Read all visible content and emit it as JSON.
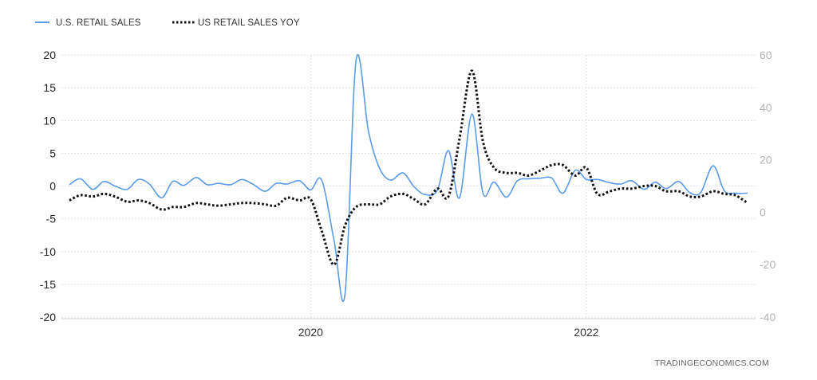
{
  "chart_data": {
    "type": "line",
    "legend": {
      "placement": "top-left",
      "items": [
        {
          "label": "U.S. RETAIL SALES",
          "color": "#5b9bea",
          "style": "solid"
        },
        {
          "label": "US RETAIL SALES YOY",
          "color": "#111111",
          "style": "dotted"
        }
      ]
    },
    "source": "TRADINGECONOMICS.COM",
    "grid": true,
    "x_ticks": [
      {
        "value": 2020.0,
        "label": "2020"
      },
      {
        "value": 2022.0,
        "label": "2022"
      }
    ],
    "xlim": [
      2018.25,
      2023.17
    ],
    "y_left": {
      "range": [
        -20,
        20
      ],
      "ticks": [
        "20",
        "15",
        "10",
        "5",
        "0",
        "-5",
        "-10",
        "-15",
        "-20"
      ],
      "tick_values": [
        20,
        15,
        10,
        5,
        0,
        -5,
        -10,
        -15,
        -20
      ]
    },
    "y_right": {
      "range": [
        -40,
        60
      ],
      "ticks": [
        "60",
        "40",
        "20",
        "0",
        "-20",
        "-40"
      ],
      "tick_values": [
        60,
        40,
        20,
        0,
        -20,
        -40
      ]
    },
    "series": [
      {
        "name": "U.S. RETAIL SALES",
        "axis": "left",
        "color": "#5b9bea",
        "dash": "solid",
        "x": [
          2018.25,
          2018.33,
          2018.42,
          2018.5,
          2018.58,
          2018.67,
          2018.75,
          2018.83,
          2018.92,
          2019.0,
          2019.08,
          2019.17,
          2019.25,
          2019.33,
          2019.42,
          2019.5,
          2019.58,
          2019.67,
          2019.75,
          2019.83,
          2019.92,
          2020.0,
          2020.08,
          2020.17,
          2020.25,
          2020.33,
          2020.42,
          2020.5,
          2020.58,
          2020.67,
          2020.75,
          2020.83,
          2020.92,
          2021.0,
          2021.08,
          2021.17,
          2021.25,
          2021.33,
          2021.42,
          2021.5,
          2021.58,
          2021.67,
          2021.75,
          2021.83,
          2021.92,
          2022.0,
          2022.08,
          2022.17,
          2022.25,
          2022.33,
          2022.42,
          2022.5,
          2022.58,
          2022.67,
          2022.75,
          2022.83,
          2022.92,
          2023.0,
          2023.08,
          2023.17
        ],
        "values": [
          0.2,
          1.1,
          -0.5,
          0.7,
          0,
          -0.5,
          1,
          0.3,
          -1.8,
          0.7,
          0.1,
          1.3,
          0.2,
          0.4,
          0.2,
          1,
          0.3,
          -0.8,
          0.4,
          0.3,
          0.8,
          -0.6,
          0.9,
          -8.3,
          -16.4,
          19.2,
          8.3,
          2.7,
          0.9,
          2.0,
          -0.1,
          -1.3,
          -0.6,
          5.4,
          -1.8,
          11,
          -1.1,
          0.6,
          -1.7,
          0.8,
          1.1,
          1.2,
          1.2,
          -1.1,
          2.4,
          1.0,
          1.0,
          0.5,
          0.3,
          0.8,
          -0.5,
          0.6,
          -0.4,
          0.7,
          -1,
          -1.0,
          3.1,
          -0.7,
          -1.1,
          -1.1
        ]
      },
      {
        "name": "US RETAIL SALES YOY",
        "axis": "right",
        "color": "#111111",
        "dash": "dotted",
        "x": [
          2018.25,
          2018.33,
          2018.42,
          2018.5,
          2018.58,
          2018.67,
          2018.75,
          2018.83,
          2018.92,
          2019.0,
          2019.08,
          2019.17,
          2019.25,
          2019.33,
          2019.42,
          2019.5,
          2019.58,
          2019.67,
          2019.75,
          2019.83,
          2019.92,
          2020.0,
          2020.08,
          2020.17,
          2020.25,
          2020.33,
          2020.42,
          2020.5,
          2020.58,
          2020.67,
          2020.75,
          2020.83,
          2020.92,
          2021.0,
          2021.08,
          2021.17,
          2021.25,
          2021.33,
          2021.42,
          2021.5,
          2021.58,
          2021.67,
          2021.75,
          2021.83,
          2021.92,
          2022.0,
          2022.08,
          2022.17,
          2022.25,
          2022.33,
          2022.42,
          2022.5,
          2022.58,
          2022.67,
          2022.75,
          2022.83,
          2022.92,
          2023.0,
          2023.08,
          2023.17
        ],
        "values": [
          4.5,
          6.5,
          6,
          7,
          6,
          4,
          4.5,
          3.5,
          1,
          2,
          2,
          3.5,
          3,
          2.5,
          3,
          3.5,
          3.5,
          3,
          2.5,
          5.5,
          4.5,
          5,
          -7,
          -20,
          -5,
          2,
          3,
          3,
          6,
          7,
          5,
          3,
          9,
          6,
          28,
          54,
          27,
          17,
          15,
          15,
          14,
          16,
          18,
          18,
          14,
          17,
          7,
          8,
          9,
          9,
          10,
          10,
          8,
          8,
          6,
          6,
          8,
          7,
          6.5,
          3.5
        ]
      }
    ]
  }
}
